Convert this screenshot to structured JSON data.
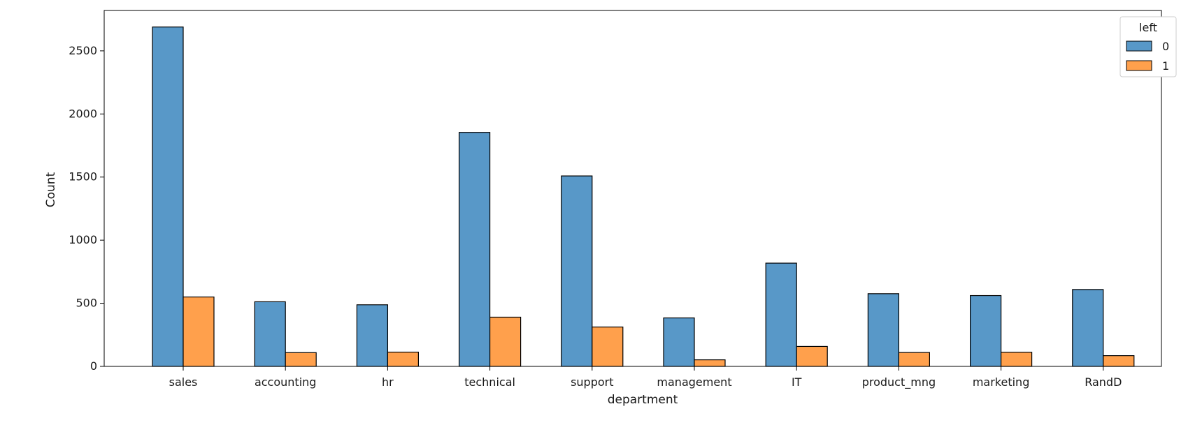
{
  "chart_data": {
    "type": "bar",
    "xlabel": "department",
    "ylabel": "Count",
    "categories": [
      "sales",
      "accounting",
      "hr",
      "technical",
      "support",
      "management",
      "IT",
      "product_mng",
      "marketing",
      "RandD"
    ],
    "series": [
      {
        "name": "0",
        "color": "#5898c8",
        "values": [
          2689,
          512,
          488,
          1854,
          1509,
          384,
          818,
          576,
          561,
          609
        ]
      },
      {
        "name": "1",
        "color": "#ffa04c",
        "values": [
          550,
          109,
          113,
          390,
          312,
          52,
          158,
          110,
          112,
          85
        ]
      }
    ],
    "ylim": [
      0,
      2820
    ],
    "yticks": [
      0,
      500,
      1000,
      1500,
      2000,
      2500
    ],
    "grid": false,
    "legend": {
      "title": "left",
      "position": "top-right"
    }
  }
}
